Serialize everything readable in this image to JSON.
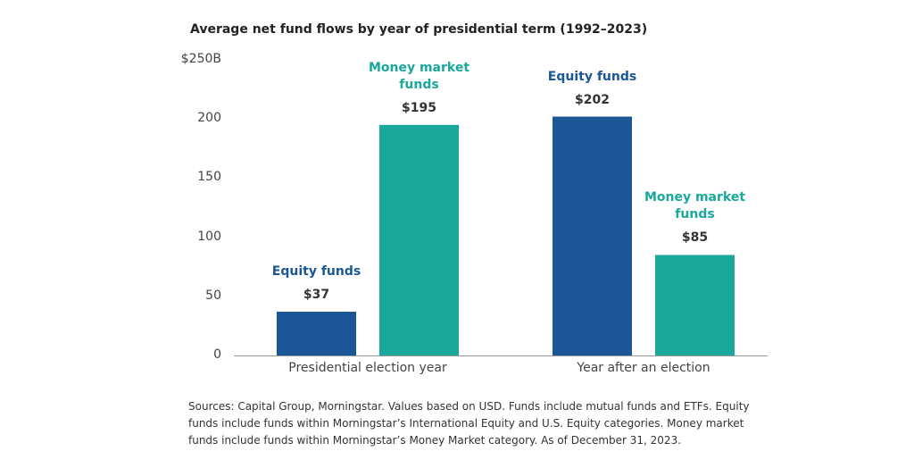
{
  "chart_data": {
    "type": "bar",
    "title": "Average net fund flows by year of presidential term (1992–2023)",
    "categories": [
      "Presidential election year",
      "Year after an election"
    ],
    "series": [
      {
        "name": "Equity funds",
        "color": "#1b5796",
        "label_color": "#1b5796",
        "values": [
          37,
          202
        ],
        "value_labels": [
          "$37",
          "$202"
        ]
      },
      {
        "name": "Money market funds",
        "color": "#1aa89c",
        "label_color": "#1aa89c",
        "values": [
          195,
          85
        ],
        "value_labels": [
          "$195",
          "$85"
        ]
      }
    ],
    "ylim": [
      0,
      250
    ],
    "yticks": [
      0,
      50,
      100,
      150,
      200,
      {
        "value": 250,
        "label": "$250B"
      }
    ],
    "grid": false,
    "note": "Sources: Capital Group, Morningstar. Values based on USD. Funds include mutual funds and ETFs. Equity funds include funds within Morningstar’s International Equity and U.S. Equity categories. Money market funds include funds within Morningstar’s Money Market category. As of December 31, 2023."
  }
}
